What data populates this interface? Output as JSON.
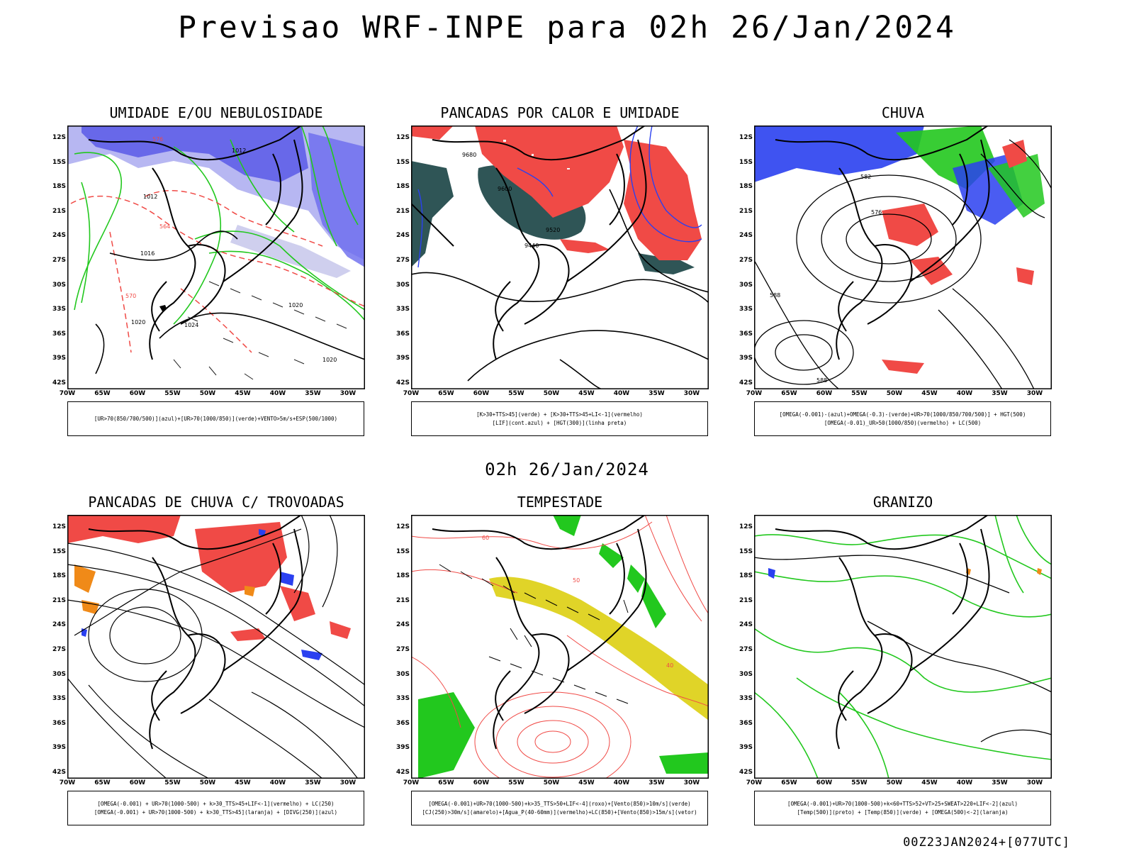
{
  "title": "Previsao WRF-INPE  para 02h 26/Jan/2024",
  "mid_date": "02h 26/Jan/2024",
  "footer": "00Z23JAN2024+[077UTC]",
  "axes": {
    "lat_labels": [
      "12S",
      "15S",
      "18S",
      "21S",
      "24S",
      "27S",
      "30S",
      "33S",
      "36S",
      "39S",
      "42S"
    ],
    "lon_labels": [
      "70W",
      "65W",
      "60W",
      "55W",
      "50W",
      "45W",
      "40W",
      "35W",
      "30W"
    ]
  },
  "colors": {
    "red": "#f04a46",
    "green": "#22c81e",
    "blue": "#2a40f0",
    "lightblue": "#b7b7f2",
    "darkteal": "#2f5556",
    "yellow": "#e0d428",
    "orange": "#f08a18",
    "salmon": "#ff7060"
  },
  "panels": [
    {
      "title": "UMIDADE E/OU NEBULOSIDADE",
      "legend": [
        "[UR>70(850/700/500)](azul)+[UR>70(1000/850)](verde)+VENTO>5m/s+ESP(500/1000)"
      ],
      "labels": {
        "l1": "1012",
        "l2": "1016",
        "l3": "1020",
        "l4": "1024",
        "l5": "570",
        "l6": "576",
        "l7": "564"
      }
    },
    {
      "title": "PANCADAS POR CALOR E UMIDADE",
      "legend": [
        "[K>30+TTS>45](verde) + [K>30+TTS>45+LI<-1](vermelho)",
        "[LIF](cont.azul) + [HGT(300)](linha preta)"
      ],
      "labels": {
        "l1": "9680",
        "l2": "9600",
        "l3": "9520",
        "l4": "9440"
      }
    },
    {
      "title": "CHUVA",
      "legend": [
        "[OMEGA(-0.001)-(azul)+OMEGA(-0.3)-(verde)+UR>70(1000/850/700/500)] + HGT(500)",
        "[OMEGA(-0.01)_UR>50(1000/850)(vermelho) + LC(500)"
      ],
      "labels": {
        "l1": "582",
        "l2": "576",
        "l3": "588"
      }
    },
    {
      "title": "PANCADAS DE CHUVA C/ TROVOADAS",
      "legend": [
        "[OMEGA(-0.001) + UR>70(1000-500) + k>30_TTS>45+LIF<-1](vermelho) + LC(250)",
        "[OMEGA(-0.001) + UR>70(1000-500) + k>30_TTS>45](laranja) + [DIVG(250)](azul)"
      ],
      "labels": {}
    },
    {
      "title": "TEMPESTADE",
      "legend": [
        "[OMEGA(-0.001)+UR>70(1000-500)+k>35_TTS>50+LIF<-4](roxo)+[Vento(850)>10m/s](verde)",
        "[CJ(250)>30m/s](amarelo)+[Agua_P(40-60mm)](vermelho)+LC(850)+[Vento(850)>15m/s](vetor)"
      ],
      "labels": {
        "l1": "40",
        "l2": "50",
        "l3": "60"
      }
    },
    {
      "title": "GRANIZO",
      "legend": [
        "[OMEGA(-0.001)+UR>70(1000-500)+k<60+TTS>52+VT>25+SWEAT>220+LIF<-2](azul)",
        "[Temp(500)](preto) + [Temp(850)](verde) + [OMEGA(500)<-2](laranja)"
      ],
      "labels": {}
    }
  ]
}
